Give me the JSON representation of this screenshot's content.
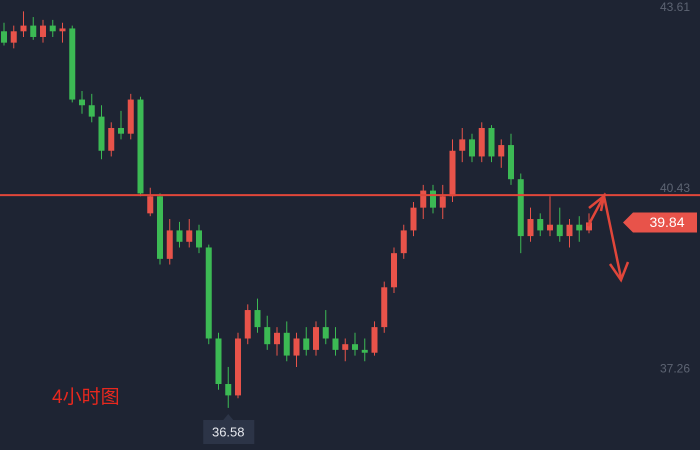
{
  "chart_data": {
    "type": "candlestick",
    "ylim": [
      35.84,
      43.75
    ],
    "yticks": [
      37.26,
      40.43,
      43.61
    ],
    "up_color": "#e8534a",
    "down_color": "#3cba54",
    "open": [
      43.2,
      43.0,
      43.2,
      43.3,
      43.1,
      43.3,
      43.2,
      43.25,
      42.0,
      41.9,
      41.7,
      41.1,
      41.5,
      41.4,
      42.0,
      40.0,
      40.3,
      39.2,
      39.7,
      39.5,
      39.7,
      39.4,
      37.8,
      37.0,
      36.8,
      37.8,
      38.3,
      38.0,
      37.7,
      37.9,
      37.5,
      37.8,
      37.6,
      38.0,
      37.8,
      37.6,
      37.7,
      37.6,
      37.55,
      38.0,
      38.7,
      39.3,
      39.7,
      40.1,
      40.4,
      40.1,
      40.3,
      41.1,
      41.3,
      41.0,
      41.5,
      41.0,
      41.2,
      40.6,
      39.6,
      39.9,
      39.7,
      39.8,
      39.6,
      39.8,
      39.7
    ],
    "high": [
      43.35,
      43.3,
      43.55,
      43.45,
      43.4,
      43.4,
      43.35,
      43.3,
      42.15,
      42.1,
      41.9,
      41.6,
      41.8,
      42.1,
      42.05,
      40.45,
      40.35,
      39.9,
      39.85,
      39.9,
      39.8,
      39.45,
      37.9,
      37.3,
      37.9,
      38.4,
      38.5,
      38.2,
      38.0,
      38.1,
      37.9,
      38.0,
      38.1,
      38.3,
      38.0,
      37.8,
      37.9,
      37.8,
      38.1,
      38.8,
      39.4,
      39.8,
      40.2,
      40.5,
      40.5,
      40.5,
      41.3,
      41.5,
      41.4,
      41.6,
      41.55,
      41.3,
      41.4,
      40.7,
      40.1,
      40.0,
      40.3,
      40.1,
      39.9,
      39.95,
      40.0
    ],
    "low": [
      42.95,
      42.9,
      43.1,
      43.05,
      43.0,
      43.1,
      43.0,
      41.95,
      41.75,
      41.6,
      40.95,
      41.0,
      41.3,
      41.3,
      40.3,
      39.95,
      39.1,
      39.1,
      39.4,
      39.4,
      39.3,
      37.7,
      36.9,
      36.58,
      36.75,
      37.7,
      37.9,
      37.6,
      37.5,
      37.4,
      37.3,
      37.5,
      37.5,
      37.7,
      37.5,
      37.4,
      37.5,
      37.4,
      37.5,
      37.9,
      38.6,
      39.2,
      39.6,
      39.9,
      40.0,
      39.9,
      40.2,
      40.9,
      40.9,
      40.9,
      40.9,
      40.8,
      40.5,
      39.3,
      39.5,
      39.6,
      39.6,
      39.5,
      39.4,
      39.5,
      39.65
    ],
    "close": [
      43.0,
      43.2,
      43.3,
      43.1,
      43.3,
      43.2,
      43.25,
      42.0,
      41.9,
      41.7,
      41.1,
      41.5,
      41.4,
      42.0,
      40.35,
      40.3,
      39.2,
      39.7,
      39.5,
      39.7,
      39.4,
      37.8,
      37.0,
      36.8,
      37.8,
      38.3,
      38.0,
      37.7,
      37.9,
      37.5,
      37.8,
      37.6,
      38.0,
      37.8,
      37.6,
      37.7,
      37.6,
      37.55,
      38.0,
      38.7,
      39.3,
      39.7,
      40.1,
      40.4,
      40.1,
      40.3,
      41.1,
      41.3,
      41.0,
      41.5,
      41.0,
      41.2,
      40.6,
      39.6,
      39.9,
      39.7,
      39.8,
      39.6,
      39.8,
      39.7,
      39.84
    ],
    "hline": {
      "value": 40.32,
      "color": "#e0463a"
    },
    "last_price": 39.84,
    "low_label": 36.58,
    "annotation": "4小时图"
  }
}
